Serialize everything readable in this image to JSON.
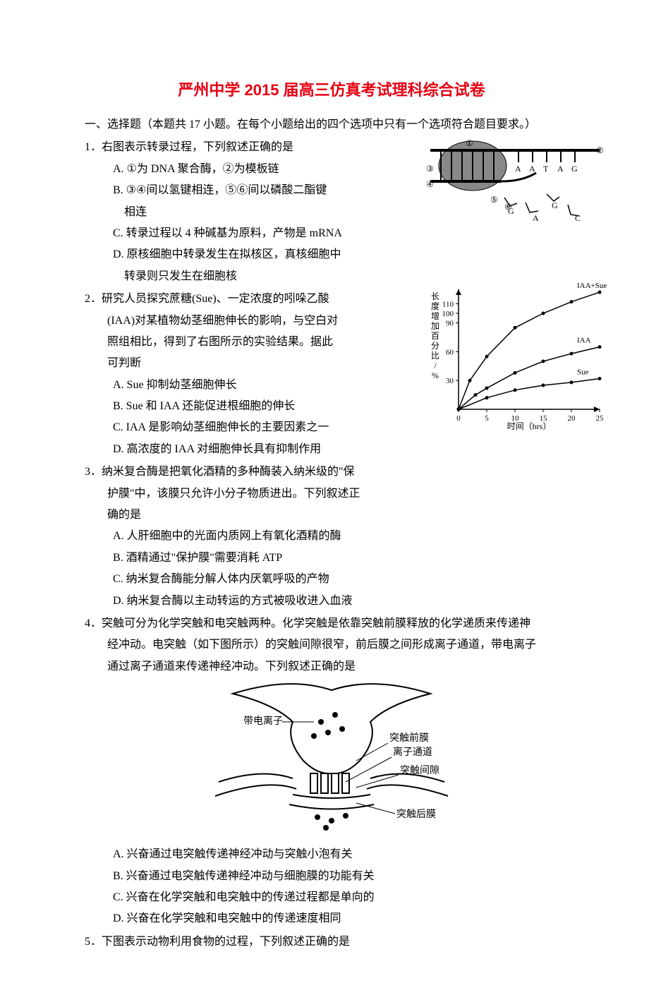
{
  "title": "严州中学 2015 届高三仿真考试理科综合试卷",
  "title_color": "#e60012",
  "section": "一、选择题（本题共 17 小题。在每个小题给出的四个选项中只有一个选项符合题目要求。）",
  "q1": {
    "stem": "1．右图表示转录过程，下列叙述正确的是",
    "a": "A. ①为 DNA 聚合酶，②为模板链",
    "b": "B. ③④间以氢键相连，⑤⑥间以磷酸二酯键",
    "b2": "相连",
    "c": "C. 转录过程以 4 种碱基为原料，产物是 mRNA",
    "d": "D. 原核细胞中转录发生在拟核区，真核细胞中",
    "d2": "转录则只发生在细胞核"
  },
  "q2": {
    "stem1": "2．研究人员探究蔗糖(Sue)、一定浓度的吲哚乙酸",
    "stem2": "(IAA)对某植物幼茎细胞伸长的影响，与空白对",
    "stem3": "照组相比，得到了右图所示的实验结果。据此",
    "stem4": "可判断",
    "a": "A. Sue 抑制幼茎细胞伸长",
    "b": "B. Sue 和 IAA 还能促进根细胞的伸长",
    "c": "C. IAA 是影响幼茎细胞伸长的主要因素之一",
    "d": "D. 高浓度的 IAA 对细胞伸长具有抑制作用"
  },
  "q3": {
    "stem1": "3．纳米复合酶是把氧化酒精的多种酶装入纳米级的\"保",
    "stem2": "护膜\"中，该膜只允许小分子物质进出。下列叙述正",
    "stem3": "确的是",
    "a": "A. 人肝细胞中的光面内质网上有氧化酒精的酶",
    "b": "B. 酒精通过\"保护膜\"需要消耗 ATP",
    "c": "C. 纳米复合酶能分解人体内厌氧呼吸的产物",
    "d": "D. 纳米复合酶以主动转运的方式被吸收进入血液"
  },
  "q4": {
    "stem1": "4．突触可分为化学突触和电突触两种。化学突触是依靠突触前膜释放的化学递质来传递神",
    "stem2": "经冲动。电突触（如下图所示）的突触间隙很窄，前后膜之间形成离子通道，带电离子",
    "stem3": "通过离子通道来传递神经冲动。下列叙述正确的是",
    "a": "A. 兴奋通过电突触传递神经冲动与突触小泡有关",
    "b": "B. 兴奋通过电突触传递神经冲动与细胞膜的功能有关",
    "c": "C. 兴奋在化学突触和电突触中的传递过程都是单向的",
    "d": "D. 兴奋在化学突触和电突触中的传递速度相同"
  },
  "q5": {
    "stem": "5．下图表示动物利用食物的过程，下列叙述正确的是"
  },
  "chart": {
    "type": "line",
    "ylabel": "长度增加百分比/%",
    "xlabel": "时间（hrs）",
    "xticks": [
      0,
      5,
      10,
      15,
      20,
      25
    ],
    "yticks": [
      30,
      60,
      90,
      100,
      110
    ],
    "series": [
      {
        "name": "IAA+Sue",
        "points": [
          [
            0,
            0
          ],
          [
            2,
            30
          ],
          [
            5,
            55
          ],
          [
            10,
            85
          ],
          [
            15,
            100
          ],
          [
            20,
            112
          ],
          [
            25,
            122
          ]
        ]
      },
      {
        "name": "IAA",
        "points": [
          [
            0,
            0
          ],
          [
            3,
            15
          ],
          [
            5,
            22
          ],
          [
            10,
            38
          ],
          [
            15,
            50
          ],
          [
            20,
            58
          ],
          [
            25,
            65
          ]
        ]
      },
      {
        "name": "Sue",
        "points": [
          [
            0,
            0
          ],
          [
            5,
            12
          ],
          [
            10,
            20
          ],
          [
            15,
            25
          ],
          [
            20,
            28
          ],
          [
            25,
            32
          ]
        ]
      }
    ],
    "line_color": "#000000",
    "bg": "#ffffff",
    "fontsize": 11
  },
  "transcription": {
    "labels": [
      "①",
      "②",
      "③",
      "④",
      "⑤",
      "⑥"
    ],
    "bases_top": [
      "A",
      "A",
      "T",
      "A",
      "G"
    ],
    "bases_bottom": [
      "G",
      "A",
      "G",
      "C"
    ]
  },
  "synapse": {
    "labels": {
      "ion": "带电离子",
      "pre": "突触前膜",
      "channel": "离子通道",
      "gap": "突触间隙",
      "post": "突触后膜"
    },
    "line_color": "#000000"
  }
}
